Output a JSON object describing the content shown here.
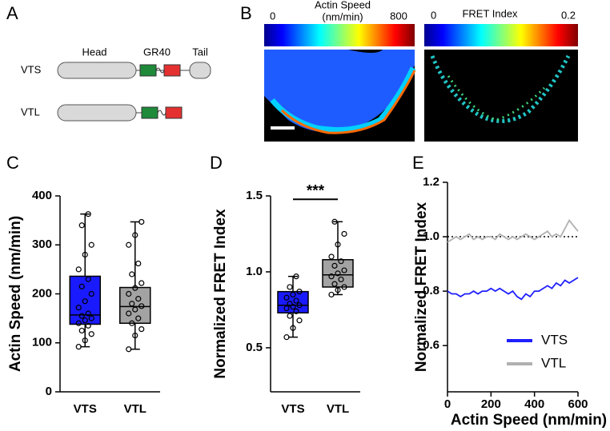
{
  "diagram": {
    "panel": "A",
    "domains": [
      "Head",
      "GR40",
      "Tail"
    ],
    "constructs": [
      "VTS",
      "VTL"
    ]
  },
  "images": {
    "panel": "B",
    "colorbars": [
      {
        "min": 0,
        "max": 800,
        "title": [
          "Actin Speed",
          "(nm/min)"
        ]
      },
      {
        "min": 0,
        "max": 0.2,
        "title": [
          "FRET Index"
        ]
      }
    ]
  },
  "chart_data": [
    {
      "type": "box",
      "panel": "C",
      "ylabel": "Actin Speed (nm/min)",
      "categories": [
        "VTS",
        "VTL"
      ],
      "ylim": [
        0,
        400
      ],
      "yticks": [
        0,
        100,
        200,
        300,
        400
      ],
      "boxes": [
        {
          "color": "#1a1aff",
          "min": 92,
          "q1": 138,
          "median": 157,
          "q3": 236,
          "max": 363,
          "points": [
            92,
            105,
            118,
            125,
            135,
            140,
            146,
            150,
            155,
            160,
            172,
            185,
            200,
            215,
            230,
            250,
            280,
            300,
            340,
            363
          ]
        },
        {
          "color": "#a3a3a3",
          "min": 87,
          "q1": 140,
          "median": 174,
          "q3": 213,
          "max": 347,
          "points": [
            87,
            115,
            128,
            140,
            150,
            160,
            168,
            175,
            180,
            190,
            200,
            212,
            222,
            240,
            262,
            300,
            320,
            347
          ]
        }
      ]
    },
    {
      "type": "box",
      "panel": "D",
      "ylabel": "Normalized FRET Index",
      "categories": [
        "VTS",
        "VTL"
      ],
      "ylim": [
        0.21,
        1.5
      ],
      "yticks": [
        0.5,
        {
          "value": 1.0,
          "label": "1.0"
        },
        1.5
      ],
      "annotation": "***",
      "boxes": [
        {
          "color": "#1a1aff",
          "min": 0.57,
          "q1": 0.73,
          "median": 0.78,
          "q3": 0.87,
          "max": 0.97,
          "points": [
            0.57,
            0.63,
            0.68,
            0.71,
            0.74,
            0.76,
            0.77,
            0.78,
            0.79,
            0.81,
            0.83,
            0.85,
            0.87,
            0.9,
            0.97
          ]
        },
        {
          "color": "#a3a3a3",
          "min": 0.85,
          "q1": 0.9,
          "median": 0.98,
          "q3": 1.08,
          "max": 1.33,
          "points": [
            0.85,
            0.88,
            0.9,
            0.92,
            0.95,
            0.97,
            0.99,
            1.01,
            1.04,
            1.07,
            1.1,
            1.18,
            1.25,
            1.33
          ]
        }
      ]
    },
    {
      "type": "line",
      "panel": "E",
      "xlabel": "Actin Speed (nm/min)",
      "ylabel": "Normalized FRET Index",
      "xlim": [
        0,
        600
      ],
      "xticks": [
        0,
        200,
        400,
        600
      ],
      "ylim": [
        0.43,
        1.2
      ],
      "yticks": [
        0.6,
        0.8,
        {
          "value": 1.0,
          "label": "1.0"
        },
        1.2
      ],
      "hline": 1,
      "x": [
        0,
        20,
        40,
        60,
        80,
        100,
        120,
        140,
        160,
        180,
        200,
        220,
        240,
        260,
        280,
        300,
        320,
        340,
        360,
        380,
        400,
        420,
        440,
        460,
        480,
        500,
        520,
        540,
        560,
        580,
        600
      ],
      "series": [
        {
          "name": "VTS",
          "color": "#1f1fff",
          "values": [
            0.8,
            0.79,
            0.79,
            0.78,
            0.79,
            0.79,
            0.8,
            0.79,
            0.8,
            0.8,
            0.81,
            0.8,
            0.81,
            0.8,
            0.79,
            0.8,
            0.78,
            0.77,
            0.79,
            0.78,
            0.8,
            0.8,
            0.81,
            0.82,
            0.81,
            0.83,
            0.82,
            0.84,
            0.83,
            0.84,
            0.85
          ]
        },
        {
          "name": "VTL",
          "color": "#b0b0b0",
          "values": [
            0.98,
            0.99,
            1.0,
            0.99,
            1.0,
            1.01,
            0.99,
            1.0,
            0.99,
            1.0,
            1.0,
            0.99,
            1.01,
            1.0,
            0.99,
            1.0,
            0.99,
            1.0,
            1.01,
            1.0,
            0.99,
            1.0,
            1.01,
            1.02,
            1.0,
            1.01,
            1.0,
            1.03,
            1.06,
            1.04,
            1.02
          ]
        }
      ]
    }
  ]
}
